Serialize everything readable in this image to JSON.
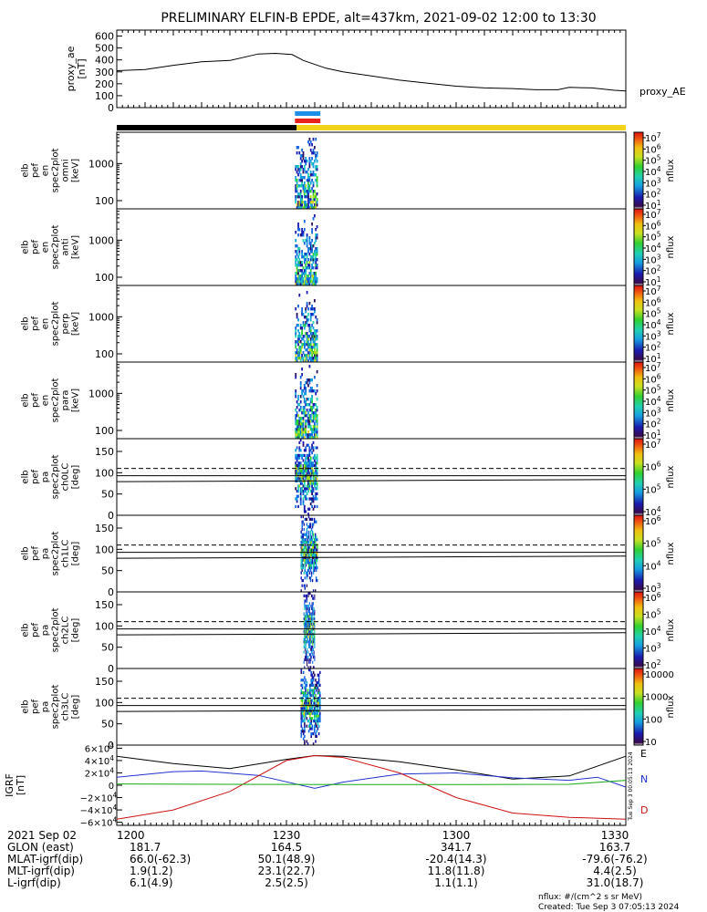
{
  "title": "PRELIMINARY ELFIN-B EPDE, alt=437km, 2021-09-02 12:00 to 13:30",
  "colors": {
    "ae_line": "#000000",
    "ephem_night": "#000000",
    "ephem_day": "#f2d21a",
    "bar_blue": "#1e8fe8",
    "bar_red": "#e8231e",
    "grf_east": "#000000",
    "grf_north": "#2233cc",
    "grf_down": "#cc1111",
    "grf_f": "#11aa11"
  },
  "chart_data": [
    {
      "type": "line",
      "name": "proxy_ae",
      "ylabel": "proxy_ae [nT]",
      "legend": "proxy_AE",
      "ylim": [
        0,
        650
      ],
      "yticks": [
        0,
        100,
        200,
        300,
        400,
        500,
        600
      ],
      "xlim": [
        0,
        90
      ],
      "x": [
        0,
        5,
        10,
        15,
        20,
        25,
        28,
        31,
        33,
        37,
        40,
        45,
        50,
        55,
        60,
        65,
        70,
        74,
        78,
        80,
        84,
        88,
        90
      ],
      "y": [
        310,
        320,
        355,
        385,
        395,
        450,
        455,
        445,
        395,
        330,
        300,
        265,
        230,
        205,
        180,
        165,
        160,
        150,
        150,
        170,
        165,
        145,
        140
      ]
    },
    {
      "type": "heatmap",
      "name": "omni",
      "ylabel": "elb pef en spec2plot omni [keV]",
      "yscale": "log",
      "ylim": [
        60,
        7000
      ],
      "yticks": [
        100,
        1000
      ],
      "ytick_labels": [
        "100",
        "1000"
      ],
      "colorbar": {
        "label": "nflux",
        "ticks": [
          "10^7",
          "10^6",
          "10^5",
          "10^4",
          "10^3",
          "10^2",
          "10^1"
        ],
        "min": 10,
        "max": 10000000
      },
      "active_minutes": [
        31.5,
        35.5
      ]
    },
    {
      "type": "heatmap",
      "name": "anti",
      "ylabel": "elb pef en spec2plot anti [keV]",
      "yscale": "log",
      "ylim": [
        60,
        7000
      ],
      "yticks": [
        100,
        1000
      ],
      "ytick_labels": [
        "100",
        "1000"
      ],
      "colorbar": {
        "label": "nflux",
        "ticks": [
          "10^7",
          "10^6",
          "10^5",
          "10^4",
          "10^3",
          "10^2",
          "10^1"
        ],
        "min": 10,
        "max": 10000000
      },
      "active_minutes": [
        31.5,
        35.5
      ]
    },
    {
      "type": "heatmap",
      "name": "perp",
      "ylabel": "elb pef en spec2plot perp [keV]",
      "yscale": "log",
      "ylim": [
        60,
        7000
      ],
      "yticks": [
        100,
        1000
      ],
      "ytick_labels": [
        "100",
        "1000"
      ],
      "colorbar": {
        "label": "nflux",
        "ticks": [
          "10^7",
          "10^6",
          "10^5",
          "10^4",
          "10^3",
          "10^2",
          "10^1"
        ],
        "min": 10,
        "max": 10000000
      },
      "active_minutes": [
        31.5,
        35.5
      ]
    },
    {
      "type": "heatmap",
      "name": "para",
      "ylabel": "elb pef en spec2plot para [keV]",
      "yscale": "log",
      "ylim": [
        60,
        7000
      ],
      "yticks": [
        100,
        1000
      ],
      "ytick_labels": [
        "100",
        "1000"
      ],
      "colorbar": {
        "label": "nflux",
        "ticks": [
          "10^7",
          "10^6",
          "10^5",
          "10^4",
          "10^3",
          "10^2",
          "10^1"
        ],
        "min": 10,
        "max": 10000000
      },
      "active_minutes": [
        31.5,
        35.5
      ]
    },
    {
      "type": "heatmap",
      "name": "ch0LC",
      "ylabel": "elb pef pa spec2plot ch0LC [deg]",
      "ylim": [
        0,
        180
      ],
      "yticks": [
        0,
        50,
        100,
        150
      ],
      "colorbar": {
        "label": "nflux",
        "ticks": [
          "10^7",
          "10^6",
          "10^5",
          "10^4"
        ],
        "min": 1000,
        "max": 10000000
      },
      "lc_dashed": 110,
      "lc_solid_start": [
        93,
        79
      ],
      "lc_solid_end": [
        93,
        84
      ],
      "active_minutes": [
        31.5,
        35.5
      ]
    },
    {
      "type": "heatmap",
      "name": "ch1LC",
      "ylabel": "elb pef pa spec2plot ch1LC [deg]",
      "ylim": [
        0,
        180
      ],
      "yticks": [
        0,
        50,
        100,
        150
      ],
      "colorbar": {
        "label": "nflux",
        "ticks": [
          "10^6",
          "10^5",
          "10^4",
          "10^3"
        ],
        "min": 1000,
        "max": 1000000
      },
      "lc_dashed": 110,
      "lc_solid_start": [
        93,
        79
      ],
      "lc_solid_end": [
        93,
        84
      ],
      "active_minutes": [
        32.5,
        35.5
      ]
    },
    {
      "type": "heatmap",
      "name": "ch2LC",
      "ylabel": "elb pef pa spec2plot ch2LC [deg]",
      "ylim": [
        0,
        180
      ],
      "yticks": [
        0,
        50,
        100,
        150
      ],
      "colorbar": {
        "label": "nflux",
        "ticks": [
          "10^6",
          "10^5",
          "10^4",
          "10^3",
          "10^2"
        ],
        "min": 100,
        "max": 1000000
      },
      "lc_dashed": 110,
      "lc_solid_start": [
        93,
        79
      ],
      "lc_solid_end": [
        93,
        84
      ],
      "active_minutes": [
        33,
        35
      ]
    },
    {
      "type": "heatmap",
      "name": "ch3LC",
      "ylabel": "elb pef pa spec2plot ch3LC [deg]",
      "ylim": [
        0,
        180
      ],
      "yticks": [
        0,
        50,
        100,
        150
      ],
      "colorbar": {
        "label": "nflux",
        "ticks": [
          "10000",
          "1000",
          "100",
          "10"
        ],
        "min": 10,
        "max": 10000
      },
      "lc_dashed": 110,
      "lc_solid_start": [
        93,
        79
      ],
      "lc_solid_end": [
        93,
        84
      ],
      "active_minutes": [
        32.5,
        36
      ]
    },
    {
      "type": "line",
      "name": "IGRF",
      "ylabel": "IGRF [nT]",
      "ylim": [
        -65000,
        65000
      ],
      "ytick_labels": [
        "6×10^4",
        "4×10^4",
        "2×10^4",
        "0",
        "−2×10^4",
        "−4×10^4",
        "−6×10^4"
      ],
      "yticks": [
        60000,
        40000,
        20000,
        0,
        -20000,
        -40000,
        -60000
      ],
      "xlim": [
        0,
        90
      ],
      "series": [
        {
          "name": "E",
          "x": [
            0,
            10,
            20,
            30,
            35,
            40,
            50,
            60,
            70,
            80,
            90
          ],
          "y": [
            47000,
            35000,
            27000,
            42000,
            48000,
            47000,
            38000,
            25000,
            10000,
            15000,
            47000
          ]
        },
        {
          "name": "N",
          "x": [
            0,
            10,
            15,
            25,
            35,
            40,
            50,
            60,
            70,
            80,
            85,
            90
          ],
          "y": [
            13000,
            22000,
            23000,
            16000,
            -5000,
            5000,
            18000,
            20000,
            12000,
            8000,
            13000,
            -3000
          ]
        },
        {
          "name": "D",
          "x": [
            0,
            10,
            20,
            30,
            35,
            40,
            50,
            60,
            70,
            80,
            90
          ],
          "y": [
            -55000,
            -40000,
            -10000,
            40000,
            48000,
            45000,
            20000,
            -20000,
            -45000,
            -52000,
            -55000
          ]
        },
        {
          "name": "F",
          "x": [
            0,
            20,
            40,
            60,
            80,
            90
          ],
          "y": [
            2000,
            1500,
            1000,
            1000,
            1500,
            8000
          ]
        }
      ],
      "legend": [
        "E",
        "N",
        "D"
      ],
      "side_text": "Tue Sep 3 00:05:13 2024"
    }
  ],
  "time_axis": {
    "labels": [
      "2021 Sep 02",
      "GLON (east)",
      "MLAT-igrf(dip)",
      "MLT-igrf(dip)",
      "L-igrf(dip)"
    ],
    "ticks": [
      {
        "minute": 0,
        "values": [
          "1200",
          "181.7",
          "66.0(-62.3)",
          "1.9(1.2)",
          "6.1(4.9)"
        ]
      },
      {
        "minute": 30,
        "values": [
          "1230",
          "164.5",
          "50.1(48.9)",
          "23.1(22.7)",
          "2.5(2.5)"
        ]
      },
      {
        "minute": 60,
        "values": [
          "1300",
          "341.7",
          "-20.4(14.3)",
          "11.8(11.8)",
          "1.1(1.1)"
        ]
      },
      {
        "minute": 90,
        "values": [
          "1330",
          "163.7",
          "-79.6(-76.2)",
          "4.4(2.5)",
          "31.0(18.7)"
        ]
      }
    ]
  },
  "footer": {
    "units": "nflux: #/(cm^2 s sr MeV)",
    "created": "Created: Tue Sep  3 07:05:13 2024"
  }
}
